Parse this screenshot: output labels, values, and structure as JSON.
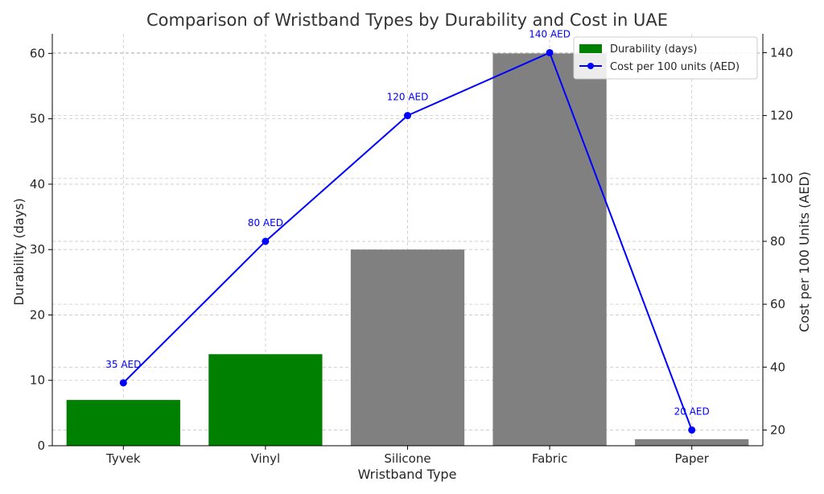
{
  "chart_data": {
    "type": "bar",
    "title": "Comparison of Wristband Types by Durability and Cost in UAE",
    "xlabel": "Wristband Type",
    "ylabel": "Durability (days)",
    "y2label": "Cost per 100 Units (AED)",
    "categories": [
      "Tyvek",
      "Vinyl",
      "Silicone",
      "Fabric",
      "Paper"
    ],
    "ylim": [
      0,
      63
    ],
    "y2lim": [
      15,
      146
    ],
    "yticks": [
      0,
      10,
      20,
      30,
      40,
      50,
      60
    ],
    "y2ticks": [
      20,
      40,
      60,
      80,
      100,
      120,
      140
    ],
    "grid": true,
    "legend_position": "top-right",
    "series": [
      {
        "name": "Durability (days)",
        "type": "bar",
        "axis": "left",
        "values": [
          7,
          14,
          30,
          60,
          1
        ],
        "bar_colors": [
          "#008000",
          "#008000",
          "#808080",
          "#808080",
          "#808080"
        ],
        "legend_color": "#008000"
      },
      {
        "name": "Cost per 100 units (AED)",
        "type": "line",
        "axis": "right",
        "values": [
          35,
          80,
          120,
          140,
          20
        ],
        "data_labels": [
          "35 AED",
          "80 AED",
          "120 AED",
          "140 AED",
          "20 AED"
        ],
        "color": "#0000ff"
      }
    ],
    "colors": {
      "right_axis_label": "#0000ff",
      "axes": "#000000"
    }
  }
}
